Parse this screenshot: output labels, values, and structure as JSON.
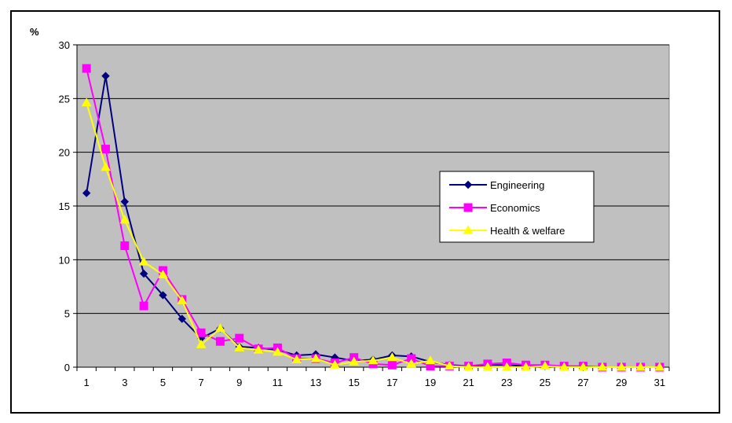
{
  "chart_data": {
    "type": "line",
    "ylabel": "%",
    "ylim": [
      0,
      30
    ],
    "yticks": [
      0,
      5,
      10,
      15,
      20,
      25,
      30
    ],
    "x": [
      1,
      2,
      3,
      4,
      5,
      6,
      7,
      8,
      9,
      10,
      11,
      12,
      13,
      14,
      15,
      16,
      17,
      18,
      19,
      20,
      21,
      22,
      23,
      24,
      25,
      26,
      27,
      28,
      29,
      30,
      31
    ],
    "xticks": [
      "1",
      "3",
      "5",
      "7",
      "9",
      "11",
      "13",
      "15",
      "17",
      "19",
      "21",
      "23",
      "25",
      "27",
      "29",
      "31"
    ],
    "grid": true,
    "plot_background": "#c0c0c0",
    "legend_position": "right-center",
    "series": [
      {
        "name": "Engineering",
        "color": "#000080",
        "marker": "diamond",
        "values": [
          16.2,
          27.1,
          15.4,
          8.7,
          6.7,
          4.5,
          2.7,
          3.6,
          1.9,
          1.8,
          1.6,
          1.1,
          1.2,
          0.9,
          0.6,
          0.7,
          1.1,
          1.0,
          0.5,
          0.2,
          0.1,
          0.2,
          0.2,
          0.1,
          0.1,
          0.1,
          0.0,
          0.0,
          0.0,
          0.0,
          0.0
        ]
      },
      {
        "name": "Economics",
        "color": "#ff00ff",
        "marker": "square",
        "values": [
          27.8,
          20.3,
          11.3,
          5.7,
          9.0,
          6.3,
          3.2,
          2.4,
          2.7,
          1.7,
          1.8,
          0.8,
          0.8,
          0.4,
          0.9,
          0.3,
          0.2,
          0.8,
          0.1,
          0.1,
          0.1,
          0.3,
          0.4,
          0.2,
          0.2,
          0.1,
          0.1,
          0.0,
          0.0,
          0.0,
          0.0
        ]
      },
      {
        "name": "Health & welfare",
        "color": "#ffff00",
        "marker": "triangle",
        "values": [
          24.6,
          18.6,
          13.7,
          9.8,
          8.6,
          6.2,
          2.1,
          3.6,
          1.8,
          1.6,
          1.4,
          0.7,
          0.8,
          0.2,
          0.5,
          0.6,
          0.9,
          0.3,
          0.6,
          0.1,
          0.0,
          0.0,
          0.0,
          0.0,
          0.1,
          0.0,
          0.0,
          0.0,
          0.0,
          0.0,
          0.0
        ]
      }
    ]
  }
}
